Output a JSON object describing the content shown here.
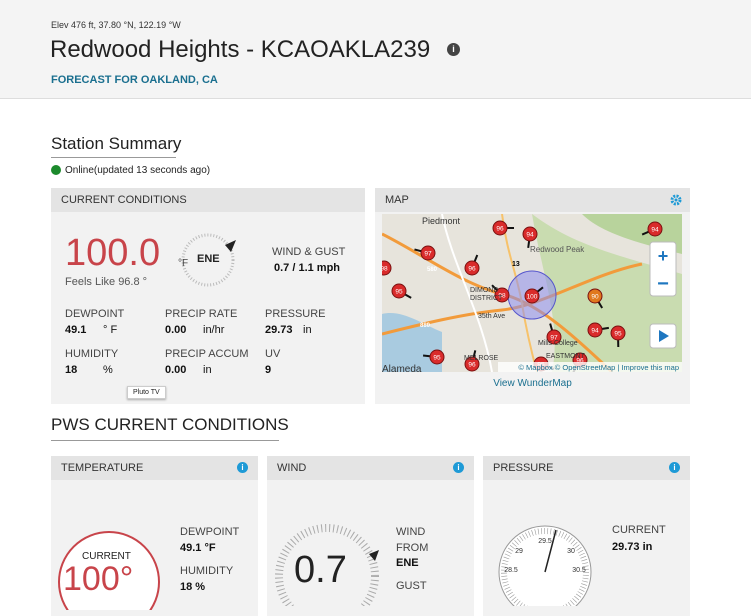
{
  "header": {
    "location_line": "Elev 476 ft, 37.80 °N, 122.19 °W",
    "title": "Redwood Heights - KCAOAKLA239",
    "forecast_link": "FORECAST FOR OAKLAND, CA"
  },
  "summary": {
    "heading": "Station Summary",
    "status": "Online(updated 13 seconds ago)"
  },
  "current_conditions": {
    "heading": "CURRENT CONDITIONS",
    "temperature": "100.0",
    "temp_unit": "°F",
    "wind_dir": "ENE",
    "feels_like": "Feels Like 96.8 °",
    "wind_gust_label": "WIND & GUST",
    "wind_gust_value": "0.7 / 1.1 mph",
    "stats": [
      {
        "label": "DEWPOINT",
        "value": "49.1",
        "unit": "° F"
      },
      {
        "label": "PRECIP RATE",
        "value": "0.00",
        "unit": "in/hr"
      },
      {
        "label": "PRESSURE",
        "value": "29.73",
        "unit": "in"
      },
      {
        "label": "HUMIDITY",
        "value": "18",
        "unit": "%"
      },
      {
        "label": "PRECIP ACCUM",
        "value": "0.00",
        "unit": "in"
      },
      {
        "label": "UV",
        "value": "9",
        "unit": ""
      }
    ],
    "tooltip": "Pluto TV"
  },
  "map": {
    "heading": "MAP",
    "link": "View WunderMap",
    "attribution": "© Mapbox © OpenStreetMap | Improve this map",
    "places": [
      "Piedmont",
      "Redwood Peak",
      "DIMOND",
      "DISTRICT",
      "35th Ave",
      "Mills College",
      "MELROSE",
      "EASTMONT",
      "Alameda",
      "13",
      "580",
      "880"
    ],
    "markers": [
      "96",
      "94",
      "97",
      "96",
      "95",
      "98",
      "98",
      "100",
      "90",
      "94",
      "97",
      "94",
      "95",
      "95",
      "96",
      "95",
      "96"
    ]
  },
  "pws": {
    "heading": "PWS CURRENT CONDITIONS",
    "temperature": {
      "heading": "TEMPERATURE",
      "current_label": "CURRENT",
      "current_value": "100°",
      "dewpoint_label": "DEWPOINT",
      "dewpoint_value": "49.1 °F",
      "humidity_label": "HUMIDITY",
      "humidity_value": "18 %"
    },
    "wind": {
      "heading": "WIND",
      "speed": "0.7",
      "from_label": "WIND FROM",
      "from_value": "ENE",
      "gust_label": "GUST"
    },
    "pressure": {
      "heading": "PRESSURE",
      "dial_labels": [
        "29.5",
        "29",
        "30",
        "28.5",
        "30.5"
      ],
      "current_label": "CURRENT",
      "current_value": "29.73 in"
    }
  }
}
